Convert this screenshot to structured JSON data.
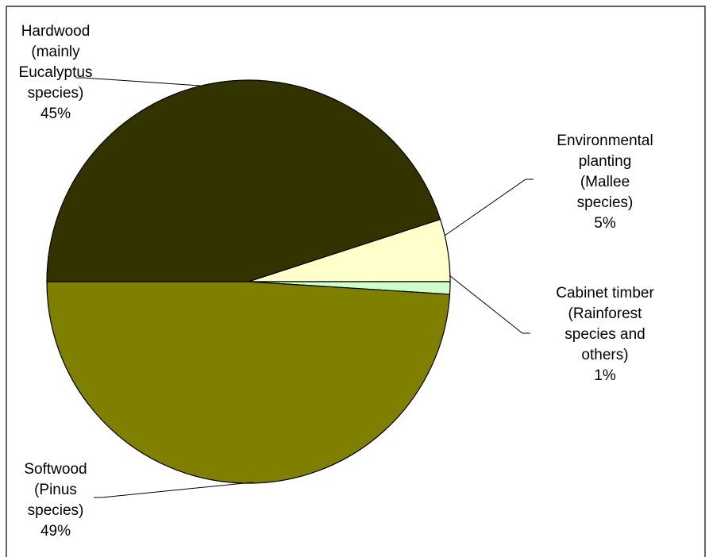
{
  "chart_data": {
    "type": "pie",
    "title": "",
    "series": [
      {
        "label_lines": [
          "Hardwood",
          "(mainly",
          "Eucalyptus",
          "species)",
          "45%"
        ],
        "value": 45,
        "color": "#333300"
      },
      {
        "label_lines": [
          "Environmental",
          "planting",
          "(Mallee",
          "species)",
          "5%"
        ],
        "value": 5,
        "color": "#FFFFCC"
      },
      {
        "label_lines": [
          "Cabinet timber",
          "(Rainforest",
          "species and",
          "others)",
          "1%"
        ],
        "value": 1,
        "color": "#CCFFCC"
      },
      {
        "label_lines": [
          "Softwood",
          "(Pinus",
          "species)",
          "49%"
        ],
        "value": 49,
        "color": "#808000"
      }
    ],
    "start_angle_deg": 180,
    "direction": "clockwise",
    "legend": "none",
    "border": true
  }
}
